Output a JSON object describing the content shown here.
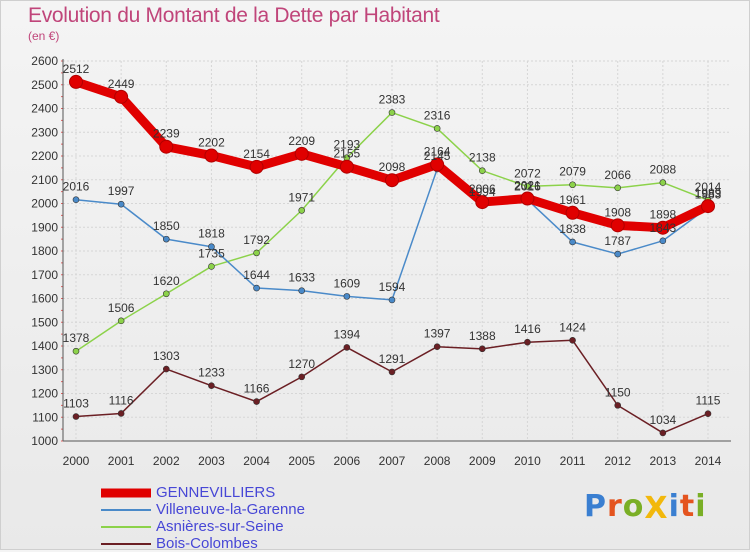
{
  "title": "Evolution du Montant de la Dette par Habitant",
  "subtitle": "(en €)",
  "logo": {
    "text": "ProXiti",
    "letters": [
      "P",
      "r",
      "o",
      "X",
      "i",
      "t",
      "i"
    ],
    "colors": [
      "#3a7fd1",
      "#e4541f",
      "#7aaf26",
      "#f2b80c",
      "#3a7fd1",
      "#e4541f",
      "#7aaf26"
    ]
  },
  "chart_data": {
    "type": "line",
    "x": [
      2000,
      2001,
      2002,
      2003,
      2004,
      2005,
      2006,
      2007,
      2008,
      2009,
      2010,
      2011,
      2012,
      2013,
      2014
    ],
    "ylim": [
      1000,
      2600
    ],
    "yticks": [
      1000,
      1100,
      1200,
      1300,
      1400,
      1500,
      1600,
      1700,
      1800,
      1900,
      2000,
      2100,
      2200,
      2300,
      2400,
      2500,
      2600
    ],
    "grid": true,
    "legend_position": "bottom-left",
    "series": [
      {
        "name": "GENNEVILLIERS",
        "color": "#e00000",
        "values": [
          2512,
          2449,
          2239,
          2202,
          2154,
          2209,
          2155,
          2098,
          2164,
          2006,
          2021,
          1961,
          1908,
          1898,
          1989
        ]
      },
      {
        "name": "Villeneuve-la-Garenne",
        "color": "#4a8ac9",
        "values": [
          2016,
          1997,
          1850,
          1818,
          1644,
          1633,
          1609,
          1594,
          2145,
          1994,
          2016,
          1838,
          1787,
          1843,
          1983
        ]
      },
      {
        "name": "Asnières-sur-Seine",
        "color": "#8cd24a",
        "values": [
          1378,
          1506,
          1620,
          1735,
          1792,
          1971,
          2193,
          2383,
          2316,
          2138,
          2072,
          2079,
          2066,
          2088,
          2014
        ]
      },
      {
        "name": "Bois-Colombes",
        "color": "#6b1f24",
        "values": [
          1103,
          1116,
          1303,
          1233,
          1166,
          1270,
          1394,
          1291,
          1397,
          1388,
          1416,
          1424,
          1150,
          1034,
          1115
        ]
      }
    ]
  }
}
